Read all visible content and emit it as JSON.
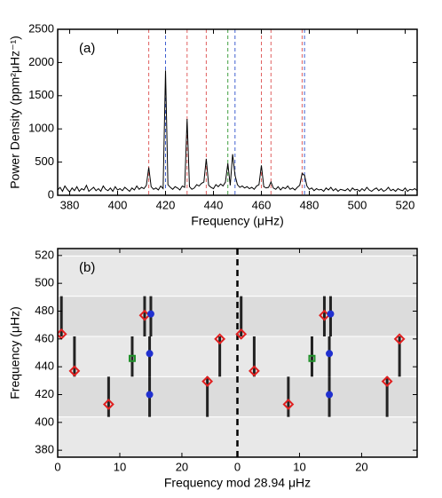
{
  "chart_data": [
    {
      "type": "line",
      "annotation": "(a)",
      "xlabel": "Frequency (μHz)",
      "ylabel": "Power Density (ppm²μHz⁻¹)",
      "xlim": [
        375,
        525
      ],
      "xticks": [
        380,
        400,
        420,
        440,
        460,
        480,
        500,
        520
      ],
      "ylim": [
        0,
        2500
      ],
      "yticks": [
        0,
        500,
        1000,
        1500,
        2000,
        2500
      ],
      "x": [
        375,
        376,
        377,
        378,
        379,
        380,
        381,
        382,
        383,
        384,
        385,
        386,
        387,
        388,
        389,
        390,
        391,
        392,
        393,
        394,
        395,
        396,
        397,
        398,
        399,
        400,
        401,
        402,
        403,
        404,
        405,
        406,
        407,
        408,
        409,
        410,
        411,
        412,
        413,
        414,
        415,
        416,
        417,
        418,
        419,
        420,
        421,
        422,
        423,
        424,
        425,
        426,
        427,
        428,
        429,
        430,
        431,
        432,
        433,
        434,
        435,
        436,
        437,
        438,
        439,
        440,
        441,
        442,
        443,
        444,
        445,
        446,
        447,
        448,
        449,
        450,
        451,
        452,
        453,
        454,
        455,
        456,
        457,
        458,
        459,
        460,
        461,
        462,
        463,
        464,
        465,
        466,
        467,
        468,
        469,
        470,
        471,
        472,
        473,
        474,
        475,
        476,
        477,
        478,
        479,
        480,
        481,
        482,
        483,
        484,
        485,
        486,
        487,
        488,
        489,
        490,
        491,
        492,
        493,
        494,
        495,
        496,
        497,
        498,
        499,
        500,
        501,
        502,
        503,
        504,
        505,
        506,
        507,
        508,
        509,
        510,
        511,
        512,
        513,
        514,
        515,
        516,
        517,
        518,
        519,
        520,
        521,
        522,
        523,
        524,
        525
      ],
      "series": [
        {
          "color": "#000000",
          "values": [
            80,
            120,
            60,
            140,
            90,
            50,
            110,
            70,
            130,
            60,
            100,
            80,
            150,
            60,
            90,
            120,
            70,
            100,
            60,
            140,
            90,
            70,
            110,
            60,
            130,
            80,
            100,
            70,
            120,
            90,
            60,
            110,
            80,
            140,
            90,
            120,
            100,
            150,
            420,
            130,
            90,
            110,
            80,
            140,
            100,
            1880,
            160,
            120,
            90,
            130,
            110,
            80,
            140,
            120,
            1150,
            130,
            90,
            110,
            160,
            140,
            180,
            200,
            550,
            150,
            120,
            100,
            160,
            130,
            170,
            140,
            200,
            480,
            150,
            620,
            300,
            160,
            120,
            140,
            110,
            130,
            100,
            120,
            90,
            140,
            160,
            450,
            130,
            110,
            120,
            200,
            110,
            90,
            130,
            80,
            120,
            100,
            140,
            90,
            110,
            80,
            120,
            150,
            330,
            300,
            140,
            90,
            110,
            70,
            100,
            80,
            90,
            60,
            110,
            80,
            120,
            70,
            100,
            60,
            90,
            80,
            70,
            100,
            60,
            110,
            80,
            90,
            60,
            100,
            70,
            120,
            80,
            60,
            90,
            110,
            70,
            100,
            60,
            80,
            120,
            70,
            90,
            60,
            100,
            80,
            70,
            110,
            60,
            90,
            80,
            100,
            70
          ]
        }
      ],
      "vlines": [
        {
          "x": 413,
          "color": "#e06060"
        },
        {
          "x": 420,
          "color": "#4060d0"
        },
        {
          "x": 429,
          "color": "#e06060"
        },
        {
          "x": 437,
          "color": "#e06060"
        },
        {
          "x": 446,
          "color": "#40a040"
        },
        {
          "x": 449,
          "color": "#4060d0"
        },
        {
          "x": 460,
          "color": "#e06060"
        },
        {
          "x": 464,
          "color": "#e06060"
        },
        {
          "x": 477,
          "color": "#e06060"
        },
        {
          "x": 478,
          "color": "#4060d0"
        }
      ]
    },
    {
      "type": "scatter",
      "annotation": "(b)",
      "xlabel": "Frequency mod 28.94 μHz",
      "ylabel": "Frequency (μHz)",
      "xlim": [
        0,
        57.88
      ],
      "xticks": [
        0,
        10,
        20,
        {
          "value": 28.94,
          "label": "0"
        },
        {
          "value": 38.94,
          "label": "10"
        },
        {
          "value": 48.94,
          "label": "20"
        }
      ],
      "ylim": [
        375,
        525
      ],
      "yticks": [
        380,
        400,
        420,
        440,
        460,
        480,
        500,
        520
      ],
      "series": [
        {
          "marker": "diamond",
          "color": "#e02020",
          "x": [
            0.6,
            2.7,
            8.2,
            14,
            24.1,
            26.1
          ],
          "values": [
            463.5,
            437,
            413,
            477,
            429.5,
            460
          ]
        },
        {
          "marker": "circle",
          "color": "#2030d0",
          "x": [
            15,
            14.8,
            14.8
          ],
          "values": [
            478,
            449.5,
            420
          ]
        },
        {
          "marker": "square",
          "color": "#20902a",
          "x": [
            12
          ],
          "values": [
            446
          ]
        }
      ]
    }
  ]
}
